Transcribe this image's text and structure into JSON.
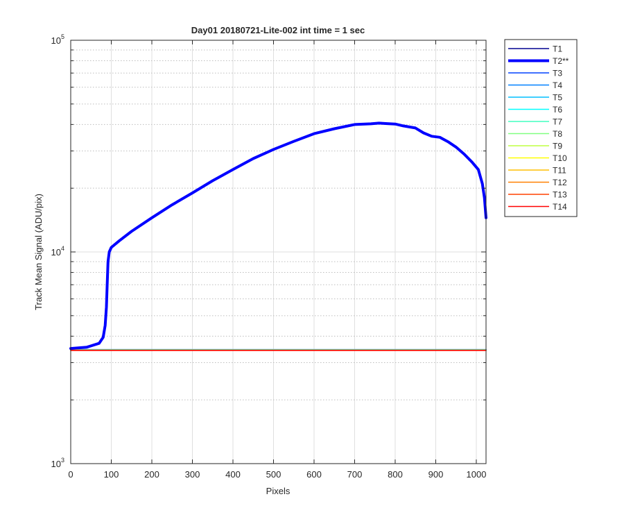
{
  "chart_data": {
    "type": "line",
    "title": "Day01 20180721-Lite-002 int time = 1 sec",
    "xlabel": "Pixels",
    "ylabel": "Track Mean Signal (ADU/pix)",
    "xlim": [
      0,
      1024
    ],
    "ylim": [
      1000,
      100000
    ],
    "yscale": "log",
    "grid": true,
    "legend_position": "outside-top-right",
    "x_ticks": [
      0,
      100,
      200,
      300,
      400,
      500,
      600,
      700,
      800,
      900,
      1000
    ],
    "x_tick_labels": [
      "0",
      "100",
      "200",
      "300",
      "400",
      "500",
      "600",
      "700",
      "800",
      "900",
      "1000"
    ],
    "y_major_ticks": [
      {
        "value": 1000,
        "base": "10",
        "exp": "3"
      },
      {
        "value": 10000,
        "base": "10",
        "exp": "4"
      },
      {
        "value": 100000,
        "base": "10",
        "exp": "5"
      }
    ],
    "series": [
      {
        "name": "T1",
        "color": "#00008f",
        "width": 1.5,
        "x": [
          0,
          1024
        ],
        "y": [
          3450,
          3450
        ]
      },
      {
        "name": "T2**",
        "color": "#0000ff",
        "width": 4,
        "x": [
          0,
          40,
          70,
          80,
          85,
          88,
          90,
          92,
          95,
          100,
          120,
          150,
          200,
          250,
          300,
          350,
          400,
          450,
          500,
          550,
          600,
          650,
          700,
          740,
          760,
          780,
          800,
          820,
          850,
          870,
          890,
          910,
          930,
          950,
          970,
          990,
          1005,
          1015,
          1020,
          1024
        ],
        "y": [
          3500,
          3550,
          3700,
          3950,
          4500,
          5500,
          7000,
          9000,
          10000,
          10500,
          11300,
          12500,
          14500,
          16700,
          19000,
          21700,
          24500,
          27600,
          30500,
          33300,
          36200,
          38200,
          40000,
          40300,
          40600,
          40400,
          40200,
          39400,
          38500,
          36500,
          35200,
          34800,
          33200,
          31300,
          29000,
          26500,
          24500,
          21000,
          18000,
          14500
        ]
      },
      {
        "name": "T3",
        "color": "#0040ff",
        "width": 1.5,
        "x": [
          0,
          1024
        ],
        "y": [
          3460,
          3460
        ]
      },
      {
        "name": "T4",
        "color": "#0080ff",
        "width": 1.5,
        "x": [
          0,
          1024
        ],
        "y": [
          3455,
          3455
        ]
      },
      {
        "name": "T5",
        "color": "#00bfff",
        "width": 1.5,
        "x": [
          0,
          1024
        ],
        "y": [
          3450,
          3450
        ]
      },
      {
        "name": "T6",
        "color": "#00ffff",
        "width": 1.5,
        "x": [
          0,
          1024
        ],
        "y": [
          3445,
          3445
        ]
      },
      {
        "name": "T7",
        "color": "#40ffbf",
        "width": 1.5,
        "x": [
          0,
          1024
        ],
        "y": [
          3440,
          3440
        ]
      },
      {
        "name": "T8",
        "color": "#80ff80",
        "width": 1.5,
        "x": [
          0,
          1024
        ],
        "y": [
          3440,
          3440
        ]
      },
      {
        "name": "T9",
        "color": "#bfff40",
        "width": 1.5,
        "x": [
          0,
          1024
        ],
        "y": [
          3435,
          3435
        ]
      },
      {
        "name": "T10",
        "color": "#ffff00",
        "width": 1.5,
        "x": [
          0,
          1024
        ],
        "y": [
          3435,
          3435
        ]
      },
      {
        "name": "T11",
        "color": "#ffbf00",
        "width": 1.5,
        "x": [
          0,
          1024
        ],
        "y": [
          3430,
          3430
        ]
      },
      {
        "name": "T12",
        "color": "#ff8000",
        "width": 1.5,
        "x": [
          0,
          1024
        ],
        "y": [
          3430,
          3430
        ]
      },
      {
        "name": "T13",
        "color": "#ff4000",
        "width": 1.5,
        "x": [
          0,
          1024
        ],
        "y": [
          3425,
          3425
        ]
      },
      {
        "name": "T14",
        "color": "#ff0000",
        "width": 1.5,
        "x": [
          0,
          1024
        ],
        "y": [
          3425,
          3425
        ]
      }
    ]
  }
}
